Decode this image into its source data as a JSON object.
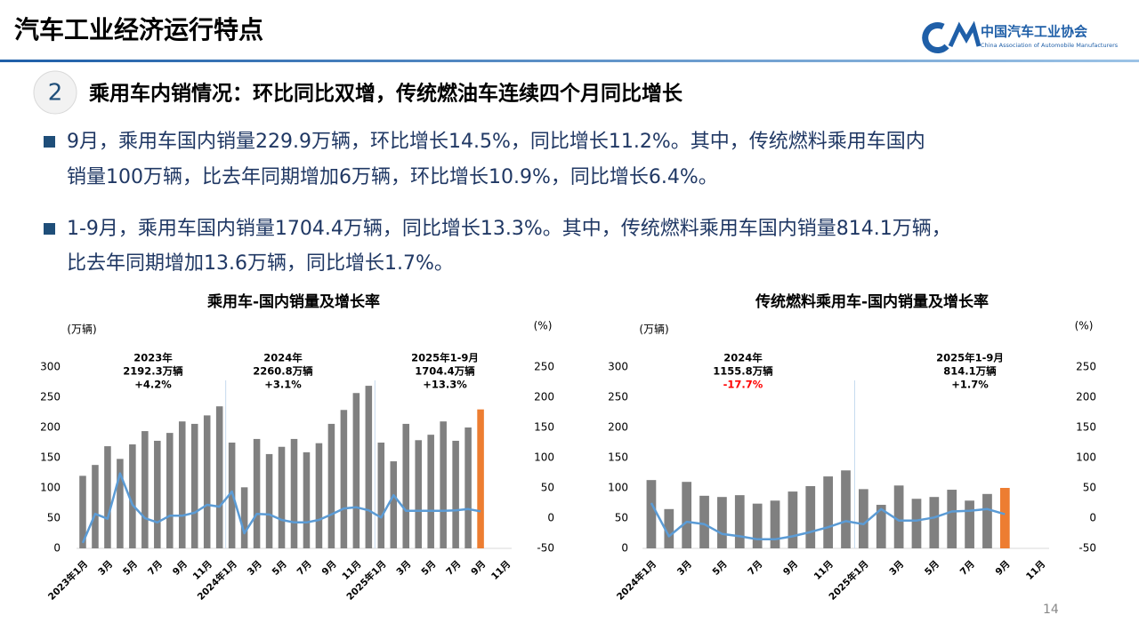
{
  "header": {
    "title": "汽车工业经济运行特点",
    "logo_cn": "中国汽车工业协会",
    "logo_en": "China Association of Automobile Manufacturers"
  },
  "section": {
    "number": "2",
    "title": "乘用车内销情况：环比同比双增，传统燃油车连续四个月同比增长"
  },
  "bullets": [
    [
      "9月，乘用车国内销量229.9万辆，环比增长14.5%，同比增长11.2%。其中，传统燃料乘用车国内",
      "销量100万辆，比去年同期增加6万辆，环比增长10.9%，同比增长6.4%。"
    ],
    [
      "1-9月，乘用车国内销量1704.4万辆，同比增长13.3%。其中，传统燃料乘用车国内销量814.1万辆，",
      "比去年同期增加13.6万辆，同比增长1.7%。"
    ]
  ],
  "page_number": "14",
  "chart_data": [
    {
      "type": "bar-line",
      "title": "乘用车-国内销量及增长率",
      "y_unit": "(万辆)",
      "y2_unit": "(%)",
      "categories": [
        "2023年1月",
        null,
        "3月",
        null,
        "5月",
        null,
        "7月",
        null,
        "9月",
        null,
        "11月",
        null,
        "2024年1月",
        null,
        "3月",
        null,
        "5月",
        null,
        "7月",
        null,
        "9月",
        null,
        "11月",
        null,
        "2025年1月",
        null,
        "3月",
        null,
        "5月",
        null,
        "7月",
        null,
        "9月",
        null,
        "11月"
      ],
      "series": [
        {
          "type": "bar",
          "color": "#808080",
          "last_color": "#ed7d31",
          "values": [
            120,
            138,
            169,
            148,
            172,
            194,
            178,
            191,
            210,
            206,
            220,
            235,
            175,
            101,
            181,
            156,
            168,
            181,
            159,
            174,
            206,
            229,
            257,
            269,
            175,
            144,
            206,
            179,
            188,
            210,
            178,
            200,
            229.9,
            null,
            null
          ]
        },
        {
          "type": "line",
          "axis": "y2",
          "color": "#5b9bd5",
          "values": [
            -41,
            7,
            -1,
            74,
            22,
            0,
            -7,
            4,
            4,
            9,
            22,
            19,
            44,
            -25,
            7,
            6,
            -3,
            -7,
            -7,
            -3,
            6,
            16,
            18,
            13,
            1,
            38,
            12,
            12,
            12,
            12,
            13,
            15,
            11.2,
            null,
            null
          ]
        }
      ],
      "ylim": [
        0,
        300
      ],
      "yticks": [
        0,
        50,
        100,
        150,
        200,
        250,
        300
      ],
      "y2lim": [
        -50,
        250
      ],
      "y2ticks": [
        -50,
        0,
        50,
        100,
        150,
        200,
        250
      ],
      "annotations": [
        {
          "lines": [
            "2023年",
            "2192.3万辆",
            "+4.2%"
          ]
        },
        {
          "lines": [
            "2024年",
            "2260.8万辆",
            "+3.1%"
          ]
        },
        {
          "lines": [
            "2025年1-9月",
            "1704.4万辆",
            "+13.3%"
          ]
        }
      ]
    },
    {
      "type": "bar-line",
      "title": "传统燃料乘用车-国内销量及增长率",
      "y_unit": "(万辆)",
      "y2_unit": "(%)",
      "categories": [
        "2024年1月",
        null,
        "3月",
        null,
        "5月",
        null,
        "7月",
        null,
        "9月",
        null,
        "11月",
        null,
        "2025年1月",
        null,
        "3月",
        null,
        "5月",
        null,
        "7月",
        null,
        "9月",
        null,
        "11月"
      ],
      "series": [
        {
          "type": "bar",
          "color": "#808080",
          "last_color": "#ed7d31",
          "values": [
            113,
            65,
            110,
            87,
            85,
            88,
            74,
            79,
            94,
            103,
            119,
            129,
            98,
            72,
            104,
            82,
            85,
            97,
            79,
            90,
            100,
            null,
            null
          ]
        },
        {
          "type": "line",
          "axis": "y2",
          "color": "#5b9bd5",
          "values": [
            25,
            -30,
            -6,
            -10,
            -26,
            -30,
            -35,
            -35,
            -30,
            -23,
            -15,
            -5,
            -10,
            15,
            -4,
            -4,
            1,
            11,
            12,
            15,
            6.4,
            null,
            null
          ]
        }
      ],
      "ylim": [
        0,
        300
      ],
      "yticks": [
        0,
        50,
        100,
        150,
        200,
        250,
        300
      ],
      "y2lim": [
        -50,
        250
      ],
      "y2ticks": [
        -50,
        0,
        50,
        100,
        150,
        200,
        250
      ],
      "annotations": [
        {
          "lines": [
            "2024年",
            "1155.8万辆",
            "-17.7%"
          ],
          "last_line_color": "#ff0000"
        },
        {
          "lines": [
            "2025年1-9月",
            "814.1万辆",
            "+1.7%"
          ]
        }
      ]
    }
  ]
}
